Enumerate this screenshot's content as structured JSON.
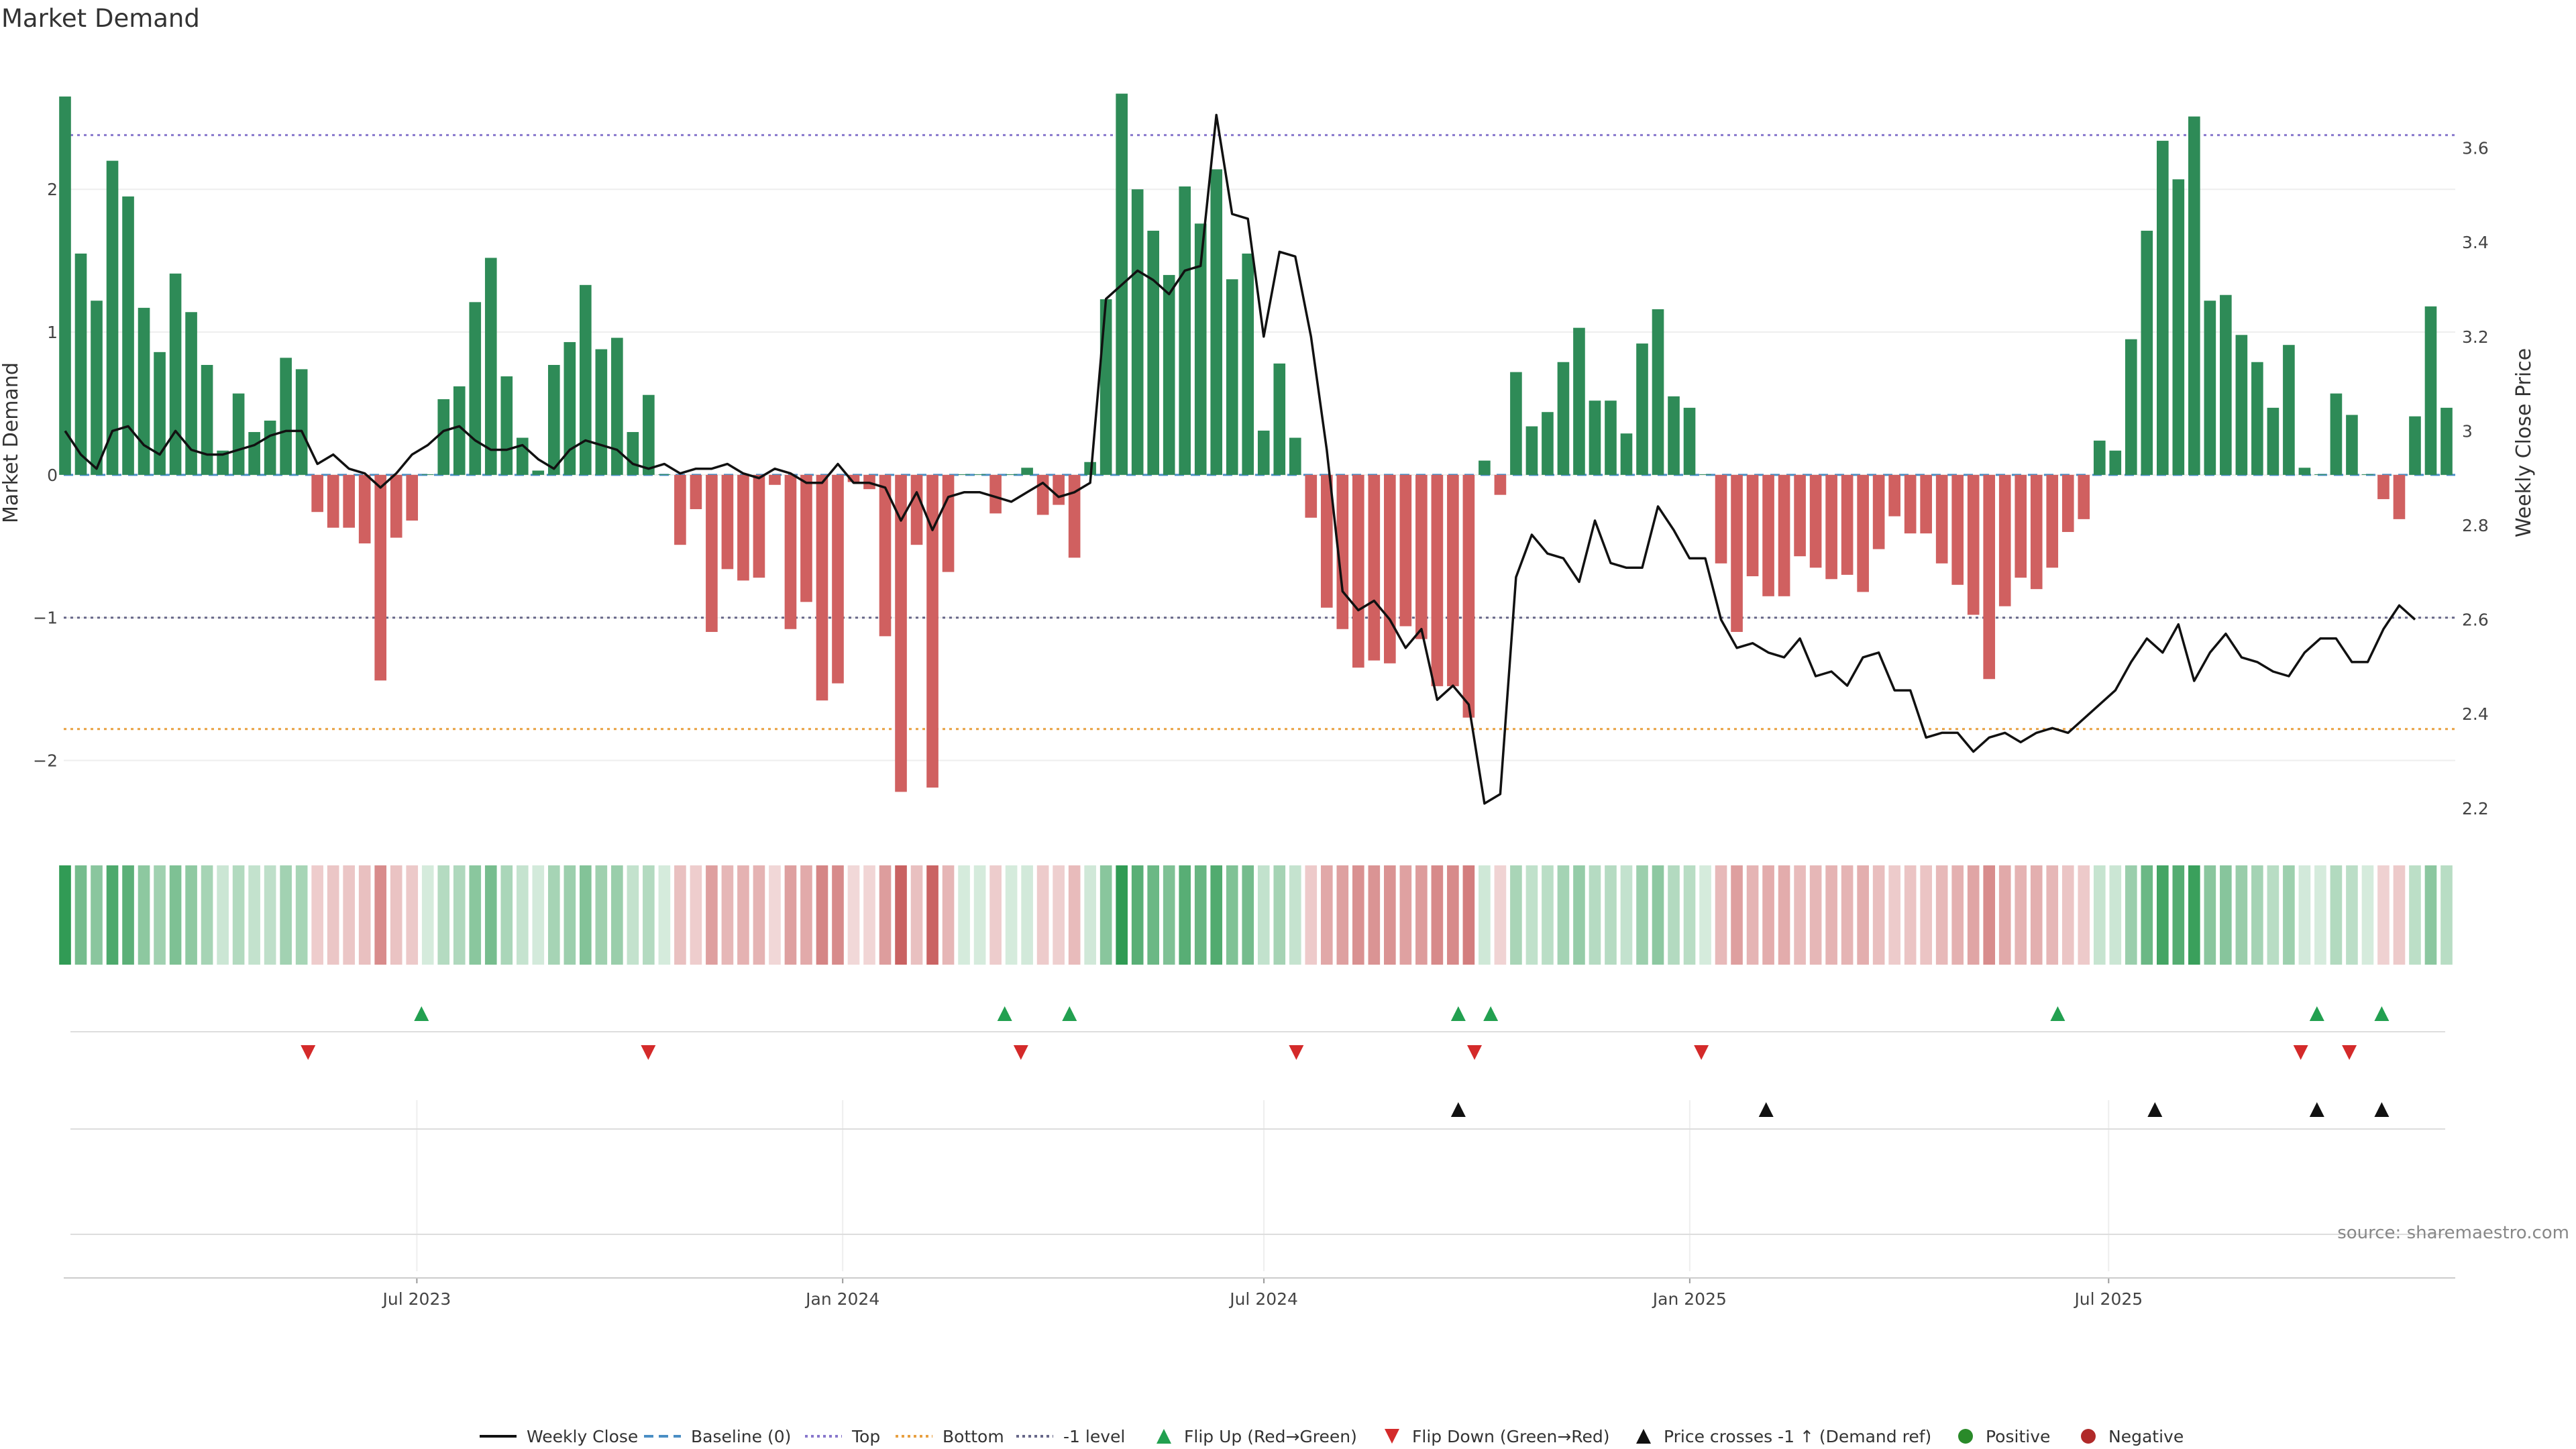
{
  "chart_data": {
    "type": "bar",
    "title": "Market Demand",
    "ylabel": "Market Demand",
    "y2label": "Weekly Close Price",
    "ylim": [
      -2.5,
      2.95
    ],
    "y2lim": [
      2.15,
      3.8
    ],
    "x_start": "2023-01-30",
    "x_end": "2025-11-24",
    "x_ticks": [
      "Jul 2023",
      "Jan 2024",
      "Jul 2024",
      "Jan 2025",
      "Jul 2025"
    ],
    "y_ticks": [
      "2",
      "1",
      "0",
      "−1",
      "−2"
    ],
    "y2_ticks": [
      "3.6",
      "3.4",
      "3.2",
      "3",
      "2.8",
      "2.6",
      "2.4",
      "2.2"
    ],
    "levels": {
      "baseline": 0,
      "top": 2.38,
      "minus_one": -1,
      "bottom": -1.78
    },
    "demand": [
      2.65,
      1.55,
      1.22,
      2.2,
      1.95,
      1.17,
      0.86,
      1.41,
      1.14,
      0.77,
      0.17,
      0.57,
      0.3,
      0.38,
      0.82,
      0.74,
      -0.26,
      -0.37,
      -0.37,
      -0.48,
      -1.44,
      -0.44,
      -0.32,
      0.0,
      0.53,
      0.62,
      1.21,
      1.52,
      0.69,
      0.26,
      0.03,
      0.77,
      0.93,
      1.33,
      0.88,
      0.96,
      0.3,
      0.56,
      -0.0,
      -0.49,
      -0.24,
      -1.1,
      -0.66,
      -0.74,
      -0.72,
      -0.07,
      -1.08,
      -0.89,
      -1.58,
      -1.46,
      -0.05,
      -0.1,
      -1.13,
      -2.22,
      -0.49,
      -2.19,
      -0.68,
      0.0,
      -0.0,
      -0.27,
      -0.0,
      0.05,
      -0.28,
      -0.21,
      -0.58,
      0.09,
      1.23,
      2.67,
      2.0,
      1.71,
      1.4,
      2.02,
      1.76,
      2.14,
      1.37,
      1.55,
      0.31,
      0.78,
      0.26,
      -0.3,
      -0.93,
      -1.08,
      -1.35,
      -1.3,
      -1.32,
      -1.06,
      -1.15,
      -1.48,
      -1.48,
      -1.7,
      0.1,
      -0.14,
      0.72,
      0.34,
      0.44,
      0.79,
      1.03,
      0.52,
      0.52,
      0.29,
      0.92,
      1.16,
      0.55,
      0.47,
      -0.0,
      -0.62,
      -1.1,
      -0.71,
      -0.85,
      -0.85,
      -0.57,
      -0.65,
      -0.73,
      -0.7,
      -0.82,
      -0.52,
      -0.29,
      -0.41,
      -0.41,
      -0.62,
      -0.77,
      -0.98,
      -1.43,
      -0.92,
      -0.72,
      -0.8,
      -0.65,
      -0.4,
      -0.31,
      0.24,
      0.17,
      0.95,
      1.71,
      2.34,
      2.07,
      2.51,
      1.22,
      1.26,
      0.98,
      0.79,
      0.47,
      0.91,
      0.05,
      -0.0,
      0.57,
      0.42,
      -0.0,
      -0.17,
      -0.31,
      0.41,
      1.18,
      0.47
    ],
    "price": [
      3.0,
      2.95,
      2.92,
      3.0,
      3.01,
      2.97,
      2.95,
      3.0,
      2.96,
      2.95,
      2.95,
      2.96,
      2.97,
      2.99,
      3.0,
      3.0,
      2.93,
      2.95,
      2.92,
      2.91,
      2.88,
      2.91,
      2.95,
      2.97,
      3.0,
      3.01,
      2.98,
      2.96,
      2.96,
      2.97,
      2.94,
      2.92,
      2.96,
      2.98,
      2.97,
      2.96,
      2.93,
      2.92,
      2.93,
      2.91,
      2.92,
      2.92,
      2.93,
      2.91,
      2.9,
      2.92,
      2.91,
      2.89,
      2.89,
      2.93,
      2.89,
      2.89,
      2.88,
      2.81,
      2.87,
      2.79,
      2.86,
      2.87,
      2.87,
      2.86,
      2.85,
      2.87,
      2.89,
      2.86,
      2.87,
      2.89,
      3.28,
      3.31,
      3.34,
      3.32,
      3.29,
      3.34,
      3.35,
      3.67,
      3.46,
      3.45,
      3.2,
      3.38,
      3.37,
      3.2,
      2.96,
      2.66,
      2.62,
      2.64,
      2.6,
      2.54,
      2.58,
      2.43,
      2.46,
      2.42,
      2.21,
      2.23,
      2.69,
      2.78,
      2.74,
      2.73,
      2.68,
      2.81,
      2.72,
      2.71,
      2.71,
      2.84,
      2.79,
      2.73,
      2.73,
      2.6,
      2.54,
      2.55,
      2.53,
      2.52,
      2.56,
      2.48,
      2.49,
      2.46,
      2.52,
      2.53,
      2.45,
      2.45,
      2.35,
      2.36,
      2.36,
      2.32,
      2.35,
      2.36,
      2.34,
      2.36,
      2.37,
      2.36,
      2.39,
      2.42,
      2.45,
      2.51,
      2.56,
      2.53,
      2.59,
      2.47,
      2.53,
      2.57,
      2.52,
      2.51,
      2.49,
      2.48,
      2.53,
      2.56,
      2.56,
      2.51,
      2.51,
      2.58,
      2.63,
      2.6
    ],
    "flip_up": [
      "2023-07-03",
      "2024-03-11",
      "2024-04-08",
      "2024-09-23",
      "2024-10-07",
      "2025-06-09",
      "2025-09-29",
      "2025-10-27"
    ],
    "flip_down": [
      "2023-05-15",
      "2023-10-09",
      "2024-03-18",
      "2024-07-15",
      "2024-09-30",
      "2025-01-06",
      "2025-09-22",
      "2025-10-13"
    ],
    "price_cross": [
      "2024-09-23",
      "2025-02-03",
      "2025-07-21",
      "2025-09-29",
      "2025-10-27"
    ],
    "legend_position": "bottom",
    "legend": [
      {
        "label": "Weekly Close",
        "kind": "line",
        "color": "#111111"
      },
      {
        "label": "Baseline (0)",
        "kind": "dash",
        "color": "#4a8ec4"
      },
      {
        "label": "Top",
        "kind": "dot",
        "color": "#8877cc"
      },
      {
        "label": "Bottom",
        "kind": "dot",
        "color": "#e8a040"
      },
      {
        "label": "-1 level",
        "kind": "dot",
        "color": "#666688"
      },
      {
        "label": "Flip Up (Red→Green)",
        "kind": "tri-up",
        "color": "#22a050"
      },
      {
        "label": "Flip Down (Green→Red)",
        "kind": "tri-down",
        "color": "#d42a2a"
      },
      {
        "label": "Price crosses -1 ↑ (Demand ref)",
        "kind": "tri-up",
        "color": "#111111"
      },
      {
        "label": "Positive",
        "kind": "dot-mark",
        "color": "#2a8a2a"
      },
      {
        "label": "Negative",
        "kind": "dot-mark",
        "color": "#b02a2a"
      }
    ],
    "colors": {
      "positive": "#2e8b57",
      "negative": "#d06060",
      "price": "#111111"
    }
  },
  "source_note": "source: sharemaestro.com"
}
